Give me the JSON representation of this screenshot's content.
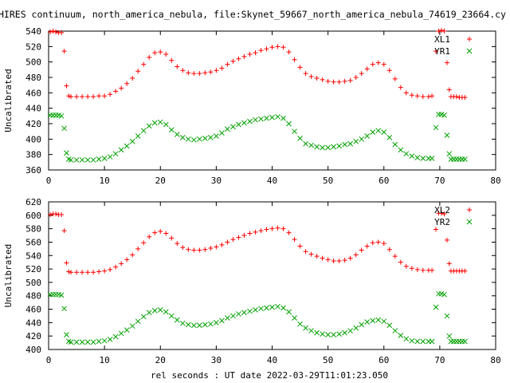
{
  "title": "HIRES continuum, north_america_nebula, file:Skynet_59667_north_america_nebula_74619_23664.cy",
  "xlabel": "rel seconds : UT date 2022-03-29T11:01:23.050",
  "colors": {
    "red": "#ff0000",
    "green": "#00a000",
    "axis": "#000000"
  },
  "chart_data": [
    {
      "type": "scatter",
      "ylabel": "Uncalibrated",
      "xlim": [
        0,
        80
      ],
      "ylim": [
        360,
        540
      ],
      "xticks": [
        0,
        10,
        20,
        30,
        40,
        50,
        60,
        70,
        80
      ],
      "yticks": [
        360,
        380,
        400,
        420,
        440,
        460,
        480,
        500,
        520,
        540
      ],
      "grid": false,
      "legend": "top-right",
      "series": [
        {
          "name": "XL1",
          "marker": "plus",
          "color": "#ff0000",
          "x": [
            0.3,
            0.8,
            1.3,
            1.8,
            2.3,
            2.8,
            3.2,
            3.6,
            4.0,
            5.0,
            6.0,
            7.0,
            8.0,
            9.0,
            10.0,
            11.0,
            12.0,
            13.0,
            14.0,
            15.0,
            16.0,
            17.0,
            18.0,
            19.0,
            20.0,
            21.0,
            22.0,
            23.0,
            24.0,
            25.0,
            26.0,
            27.0,
            28.0,
            29.0,
            30.0,
            31.0,
            32.0,
            33.0,
            34.0,
            35.0,
            36.0,
            37.0,
            38.0,
            39.0,
            40.0,
            41.0,
            42.0,
            43.0,
            44.0,
            45.0,
            46.0,
            47.0,
            48.0,
            49.0,
            50.0,
            51.0,
            52.0,
            53.0,
            54.0,
            55.0,
            56.0,
            57.0,
            58.0,
            59.0,
            60.0,
            61.0,
            62.0,
            63.0,
            64.0,
            65.0,
            66.0,
            67.0,
            68.0,
            68.6,
            69.3,
            69.8,
            70.3,
            70.8,
            71.3,
            71.7,
            72.0,
            72.5,
            73.0,
            73.5,
            74.0,
            74.5
          ],
          "y": [
            539,
            540,
            539,
            538,
            538,
            514,
            469,
            456,
            455,
            455,
            455,
            455,
            455,
            456,
            456,
            458,
            462,
            466,
            472,
            479,
            488,
            497,
            506,
            512,
            513,
            510,
            502,
            494,
            489,
            486,
            485,
            485,
            486,
            487,
            489,
            492,
            497,
            501,
            504,
            507,
            510,
            512,
            515,
            517,
            519,
            520,
            519,
            513,
            503,
            493,
            485,
            481,
            479,
            477,
            475,
            474,
            474,
            475,
            476,
            480,
            485,
            491,
            497,
            499,
            497,
            489,
            478,
            467,
            460,
            457,
            456,
            455,
            455,
            456,
            514,
            540,
            541,
            540,
            499,
            464,
            455,
            455,
            455,
            454,
            454,
            454
          ]
        },
        {
          "name": "YR1",
          "marker": "cross",
          "color": "#00a000",
          "x": [
            0.3,
            0.8,
            1.3,
            1.8,
            2.3,
            2.8,
            3.2,
            3.6,
            4.0,
            5.0,
            6.0,
            7.0,
            8.0,
            9.0,
            10.0,
            11.0,
            12.0,
            13.0,
            14.0,
            15.0,
            16.0,
            17.0,
            18.0,
            19.0,
            20.0,
            21.0,
            22.0,
            23.0,
            24.0,
            25.0,
            26.0,
            27.0,
            28.0,
            29.0,
            30.0,
            31.0,
            32.0,
            33.0,
            34.0,
            35.0,
            36.0,
            37.0,
            38.0,
            39.0,
            40.0,
            41.0,
            42.0,
            43.0,
            44.0,
            45.0,
            46.0,
            47.0,
            48.0,
            49.0,
            50.0,
            51.0,
            52.0,
            53.0,
            54.0,
            55.0,
            56.0,
            57.0,
            58.0,
            59.0,
            60.0,
            61.0,
            62.0,
            63.0,
            64.0,
            65.0,
            66.0,
            67.0,
            68.0,
            68.6,
            69.3,
            69.8,
            70.3,
            70.8,
            71.3,
            71.7,
            72.0,
            72.5,
            73.0,
            73.5,
            74.0,
            74.5
          ],
          "y": [
            431,
            431,
            431,
            431,
            430,
            414,
            382,
            374,
            373,
            373,
            373,
            373,
            373,
            374,
            375,
            377,
            381,
            386,
            391,
            397,
            404,
            411,
            417,
            421,
            422,
            419,
            412,
            406,
            402,
            400,
            399,
            400,
            401,
            402,
            404,
            408,
            413,
            416,
            419,
            421,
            423,
            425,
            426,
            427,
            428,
            429,
            427,
            420,
            410,
            401,
            394,
            392,
            390,
            389,
            389,
            390,
            391,
            393,
            394,
            397,
            400,
            404,
            409,
            411,
            409,
            402,
            393,
            386,
            381,
            378,
            376,
            375,
            375,
            375,
            415,
            432,
            432,
            431,
            405,
            381,
            374,
            374,
            374,
            374,
            374,
            374
          ]
        }
      ]
    },
    {
      "type": "scatter",
      "ylabel": "Uncalibrated",
      "xlim": [
        0,
        80
      ],
      "ylim": [
        400,
        620
      ],
      "xticks": [
        0,
        10,
        20,
        30,
        40,
        50,
        60,
        70,
        80
      ],
      "yticks": [
        400,
        420,
        440,
        460,
        480,
        500,
        520,
        540,
        560,
        580,
        600,
        620
      ],
      "grid": false,
      "legend": "top-right",
      "series": [
        {
          "name": "XL2",
          "marker": "plus",
          "color": "#ff0000",
          "x": [
            0.3,
            0.8,
            1.3,
            1.8,
            2.3,
            2.8,
            3.2,
            3.6,
            4.0,
            5.0,
            6.0,
            7.0,
            8.0,
            9.0,
            10.0,
            11.0,
            12.0,
            13.0,
            14.0,
            15.0,
            16.0,
            17.0,
            18.0,
            19.0,
            20.0,
            21.0,
            22.0,
            23.0,
            24.0,
            25.0,
            26.0,
            27.0,
            28.0,
            29.0,
            30.0,
            31.0,
            32.0,
            33.0,
            34.0,
            35.0,
            36.0,
            37.0,
            38.0,
            39.0,
            40.0,
            41.0,
            42.0,
            43.0,
            44.0,
            45.0,
            46.0,
            47.0,
            48.0,
            49.0,
            50.0,
            51.0,
            52.0,
            53.0,
            54.0,
            55.0,
            56.0,
            57.0,
            58.0,
            59.0,
            60.0,
            61.0,
            62.0,
            63.0,
            64.0,
            65.0,
            66.0,
            67.0,
            68.0,
            68.6,
            69.3,
            69.8,
            70.3,
            70.8,
            71.3,
            71.7,
            72.0,
            72.5,
            73.0,
            73.5,
            74.0,
            74.5
          ],
          "y": [
            601,
            602,
            602,
            601,
            601,
            577,
            529,
            516,
            515,
            515,
            515,
            515,
            515,
            516,
            517,
            519,
            523,
            528,
            534,
            541,
            550,
            559,
            568,
            574,
            576,
            573,
            566,
            558,
            552,
            549,
            548,
            548,
            549,
            551,
            553,
            556,
            560,
            564,
            567,
            570,
            573,
            575,
            577,
            579,
            580,
            581,
            580,
            574,
            564,
            554,
            546,
            542,
            539,
            536,
            534,
            532,
            532,
            533,
            536,
            541,
            548,
            554,
            559,
            560,
            558,
            549,
            539,
            530,
            524,
            521,
            519,
            518,
            518,
            518,
            579,
            603,
            603,
            602,
            563,
            528,
            517,
            517,
            517,
            517,
            517,
            517
          ]
        },
        {
          "name": "YR2",
          "marker": "cross",
          "color": "#00a000",
          "x": [
            0.3,
            0.8,
            1.3,
            1.8,
            2.3,
            2.8,
            3.2,
            3.6,
            4.0,
            5.0,
            6.0,
            7.0,
            8.0,
            9.0,
            10.0,
            11.0,
            12.0,
            13.0,
            14.0,
            15.0,
            16.0,
            17.0,
            18.0,
            19.0,
            20.0,
            21.0,
            22.0,
            23.0,
            24.0,
            25.0,
            26.0,
            27.0,
            28.0,
            29.0,
            30.0,
            31.0,
            32.0,
            33.0,
            34.0,
            35.0,
            36.0,
            37.0,
            38.0,
            39.0,
            40.0,
            41.0,
            42.0,
            43.0,
            44.0,
            45.0,
            46.0,
            47.0,
            48.0,
            49.0,
            50.0,
            51.0,
            52.0,
            53.0,
            54.0,
            55.0,
            56.0,
            57.0,
            58.0,
            59.0,
            60.0,
            61.0,
            62.0,
            63.0,
            64.0,
            65.0,
            66.0,
            67.0,
            68.0,
            68.6,
            69.3,
            69.8,
            70.3,
            70.8,
            71.3,
            71.7,
            72.0,
            72.5,
            73.0,
            73.5,
            74.0,
            74.5
          ],
          "y": [
            482,
            482,
            482,
            482,
            481,
            461,
            422,
            412,
            411,
            411,
            411,
            411,
            411,
            412,
            413,
            415,
            419,
            424,
            429,
            435,
            442,
            449,
            455,
            458,
            459,
            456,
            450,
            444,
            439,
            437,
            436,
            436,
            437,
            438,
            440,
            443,
            447,
            450,
            453,
            455,
            457,
            459,
            461,
            462,
            463,
            464,
            462,
            456,
            447,
            438,
            432,
            428,
            425,
            423,
            422,
            422,
            423,
            425,
            428,
            432,
            437,
            441,
            443,
            444,
            442,
            436,
            428,
            421,
            416,
            413,
            412,
            412,
            412,
            412,
            463,
            483,
            483,
            482,
            450,
            420,
            412,
            412,
            412,
            412,
            412,
            412
          ]
        }
      ]
    }
  ]
}
